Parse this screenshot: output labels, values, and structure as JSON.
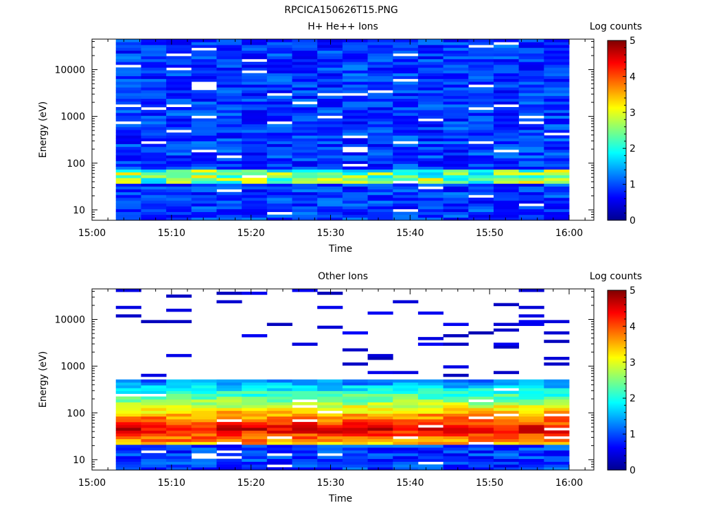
{
  "figure_title": "RPCICA150626T15.PNG",
  "colormap": [
    "#00008f",
    "#0000ff",
    "#007fff",
    "#00ffff",
    "#7fff7f",
    "#ffff00",
    "#ff7f00",
    "#ff0000",
    "#7f0000"
  ],
  "chart_data": [
    {
      "type": "heatmap",
      "title": "H+ He++ Ions",
      "xlabel": "Time",
      "ylabel": "Energy (eV)",
      "colorbar_label": "Log counts",
      "colorbar_ticks": [
        "0",
        "1",
        "2",
        "3",
        "4",
        "5"
      ],
      "x_ticks": [
        "15:00",
        "15:10",
        "15:20",
        "15:30",
        "15:40",
        "15:50",
        "16:00"
      ],
      "y_ticks": [
        "10",
        "100",
        "1000",
        "10000"
      ],
      "y_scale": "log",
      "ylim": [
        6,
        45000
      ],
      "zlim": [
        0,
        5
      ],
      "time_start": "15:03",
      "time_end": "16:00",
      "time_bins": 18,
      "features": {
        "background_log_counts": [
          0.5,
          1.3
        ],
        "peak_band_eV": [
          35,
          70
        ],
        "peak_log_counts": [
          1.5,
          3.3
        ]
      }
    },
    {
      "type": "heatmap",
      "title": "Other Ions",
      "xlabel": "Time",
      "ylabel": "Energy (eV)",
      "colorbar_label": "Log counts",
      "colorbar_ticks": [
        "0",
        "1",
        "2",
        "3",
        "4",
        "5"
      ],
      "x_ticks": [
        "15:00",
        "15:10",
        "15:20",
        "15:30",
        "15:40",
        "15:50",
        "16:00"
      ],
      "y_ticks": [
        "10",
        "100",
        "1000",
        "10000"
      ],
      "y_scale": "log",
      "ylim": [
        6,
        45000
      ],
      "zlim": [
        0,
        5
      ],
      "time_start": "15:03",
      "time_end": "16:00",
      "time_bins": 18,
      "features": {
        "peak_band_eV": [
          30,
          70
        ],
        "peak_log_counts": [
          3.5,
          4.9
        ],
        "sparse_above_eV": 500
      }
    }
  ]
}
